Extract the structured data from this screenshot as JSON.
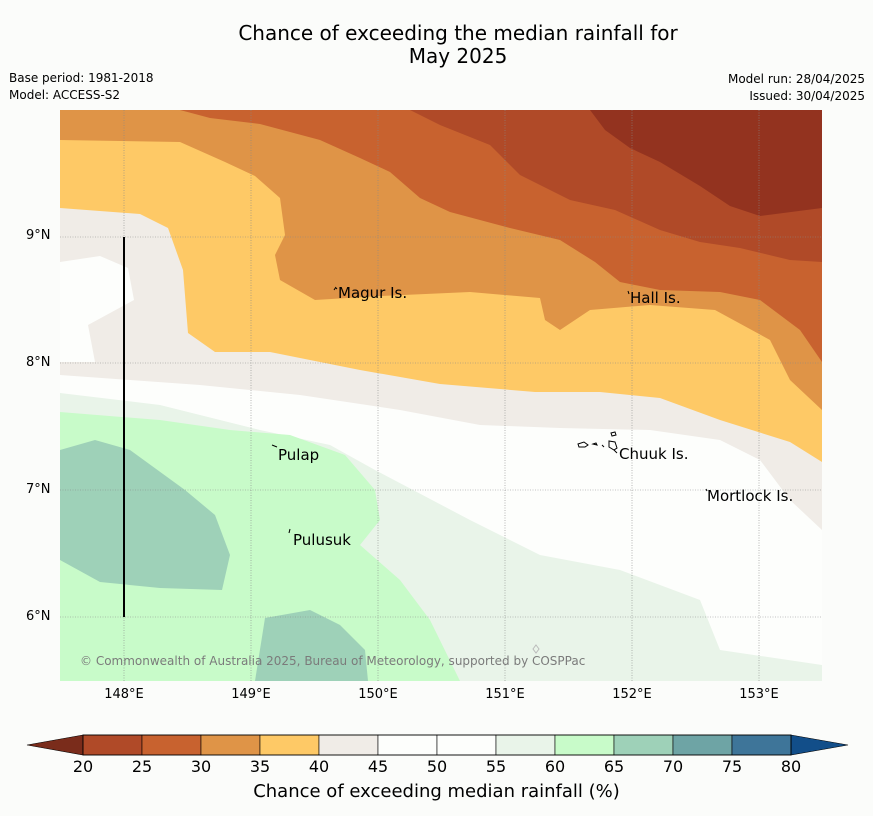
{
  "header": {
    "title_line1": "Chance of exceeding the median rainfall for",
    "title_line2": "May 2025",
    "base_period": "Base period: 1981-2018",
    "model": "Model: ACCESS-S2",
    "model_run": "Model run: 28/04/2025",
    "issued": "Issued: 30/04/2025"
  },
  "map": {
    "lat_labels": [
      "9°N",
      "8°N",
      "7°N",
      "6°N"
    ],
    "lon_labels": [
      "148°E",
      "149°E",
      "150°E",
      "151°E",
      "152°E",
      "153°E"
    ],
    "places": [
      {
        "name": "Magur Is."
      },
      {
        "name": "Hall Is."
      },
      {
        "name": "Pulap"
      },
      {
        "name": "Chuuk Is."
      },
      {
        "name": "Mortlock Is."
      },
      {
        "name": "Pulusuk"
      }
    ],
    "copyright": "© Commonwealth of Australia 2025, Bureau of Meteorology, supported by COSPPac"
  },
  "colorbar": {
    "ticks": [
      "20",
      "25",
      "30",
      "35",
      "40",
      "45",
      "50",
      "55",
      "60",
      "65",
      "70",
      "75",
      "80"
    ],
    "colors": [
      "#7a2c1b",
      "#b04a28",
      "#c8622f",
      "#df9447",
      "#fec966",
      "#f0ece7",
      "#fdfefc",
      "#fdfefc",
      "#e9f4e9",
      "#c8fbc9",
      "#9ed1b8",
      "#6ea4a5",
      "#3e7599",
      "#124e89"
    ],
    "label": "Chance of exceeding median rainfall (%)"
  }
}
